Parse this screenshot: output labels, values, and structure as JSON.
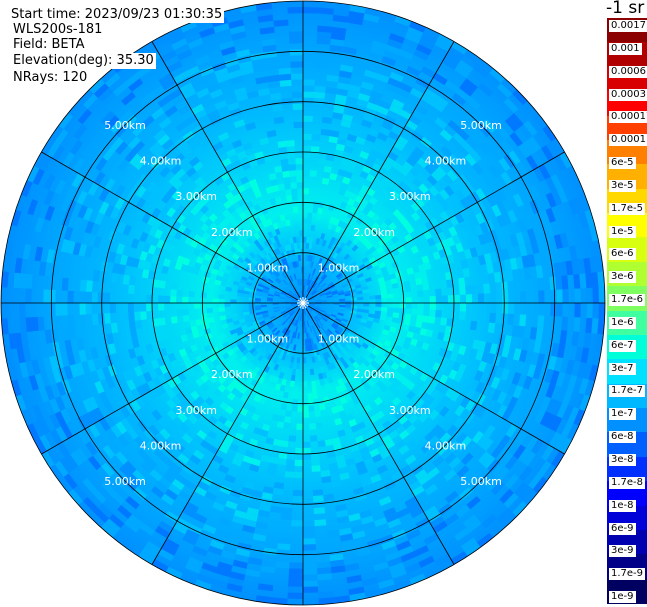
{
  "header": {
    "start_time": "Start time: 2023/09/23 01:30:35",
    "instrument": "WLS200s-181",
    "field": "Field: BETA",
    "elevation": "Elevation(deg): 35.30",
    "nrays": "NRays: 120"
  },
  "colorbar": {
    "unit": "-1 sr",
    "labels": [
      "0.0017",
      "0.001",
      "0.0006",
      "0.0003",
      "0.00017",
      "0.0001",
      "6e-5",
      "3e-5",
      "1.7e-5",
      "1e-5",
      "6e-6",
      "3e-6",
      "1.7e-6",
      "1e-6",
      "6e-7",
      "3e-7",
      "1.7e-7",
      "1e-7",
      "6e-8",
      "3e-8",
      "1.7e-8",
      "1e-8",
      "6e-9",
      "3e-9",
      "1.7e-9",
      "1e-9"
    ],
    "colors": [
      "#8b0000",
      "#b00000",
      "#d80000",
      "#ff0000",
      "#ff4000",
      "#ff8000",
      "#ffb000",
      "#ffd800",
      "#ffff00",
      "#d8ff10",
      "#b0ff30",
      "#80ff60",
      "#40ffa0",
      "#00ffd8",
      "#00e0ff",
      "#00b8ff",
      "#0090ff",
      "#0060ff",
      "#0030ff",
      "#0000ff",
      "#0000d8",
      "#0000b0",
      "#000088",
      "#000060"
    ]
  },
  "chart_data": {
    "type": "heatmap",
    "title": "",
    "field": "BETA",
    "unit": "-1 sr",
    "scale": "log",
    "value_range": [
      1e-09,
      0.0017
    ],
    "elevation_deg": 35.3,
    "n_rays": 120,
    "range_ring_labels": [
      "1.00km",
      "2.00km",
      "3.00km",
      "4.00km",
      "5.00km"
    ],
    "range_rings_km": [
      1,
      2,
      3,
      4,
      5
    ],
    "max_range_km": 6.0,
    "spokes_deg": [
      0,
      30,
      60,
      90,
      120,
      150,
      180,
      210,
      240,
      270,
      300,
      330
    ],
    "radial_profile": [
      {
        "range_km": 0.5,
        "color": "#0090ff"
      },
      {
        "range_km": 1.0,
        "color": "#00b8ff"
      },
      {
        "range_km": 2.0,
        "color": "#00f0ee"
      },
      {
        "range_km": 3.0,
        "color": "#00d8f8"
      },
      {
        "range_km": 4.0,
        "color": "#00b8ff"
      },
      {
        "range_km": 5.0,
        "color": "#00a4ff"
      },
      {
        "range_km": 6.0,
        "color": "#0090ff"
      }
    ],
    "grid": true
  }
}
